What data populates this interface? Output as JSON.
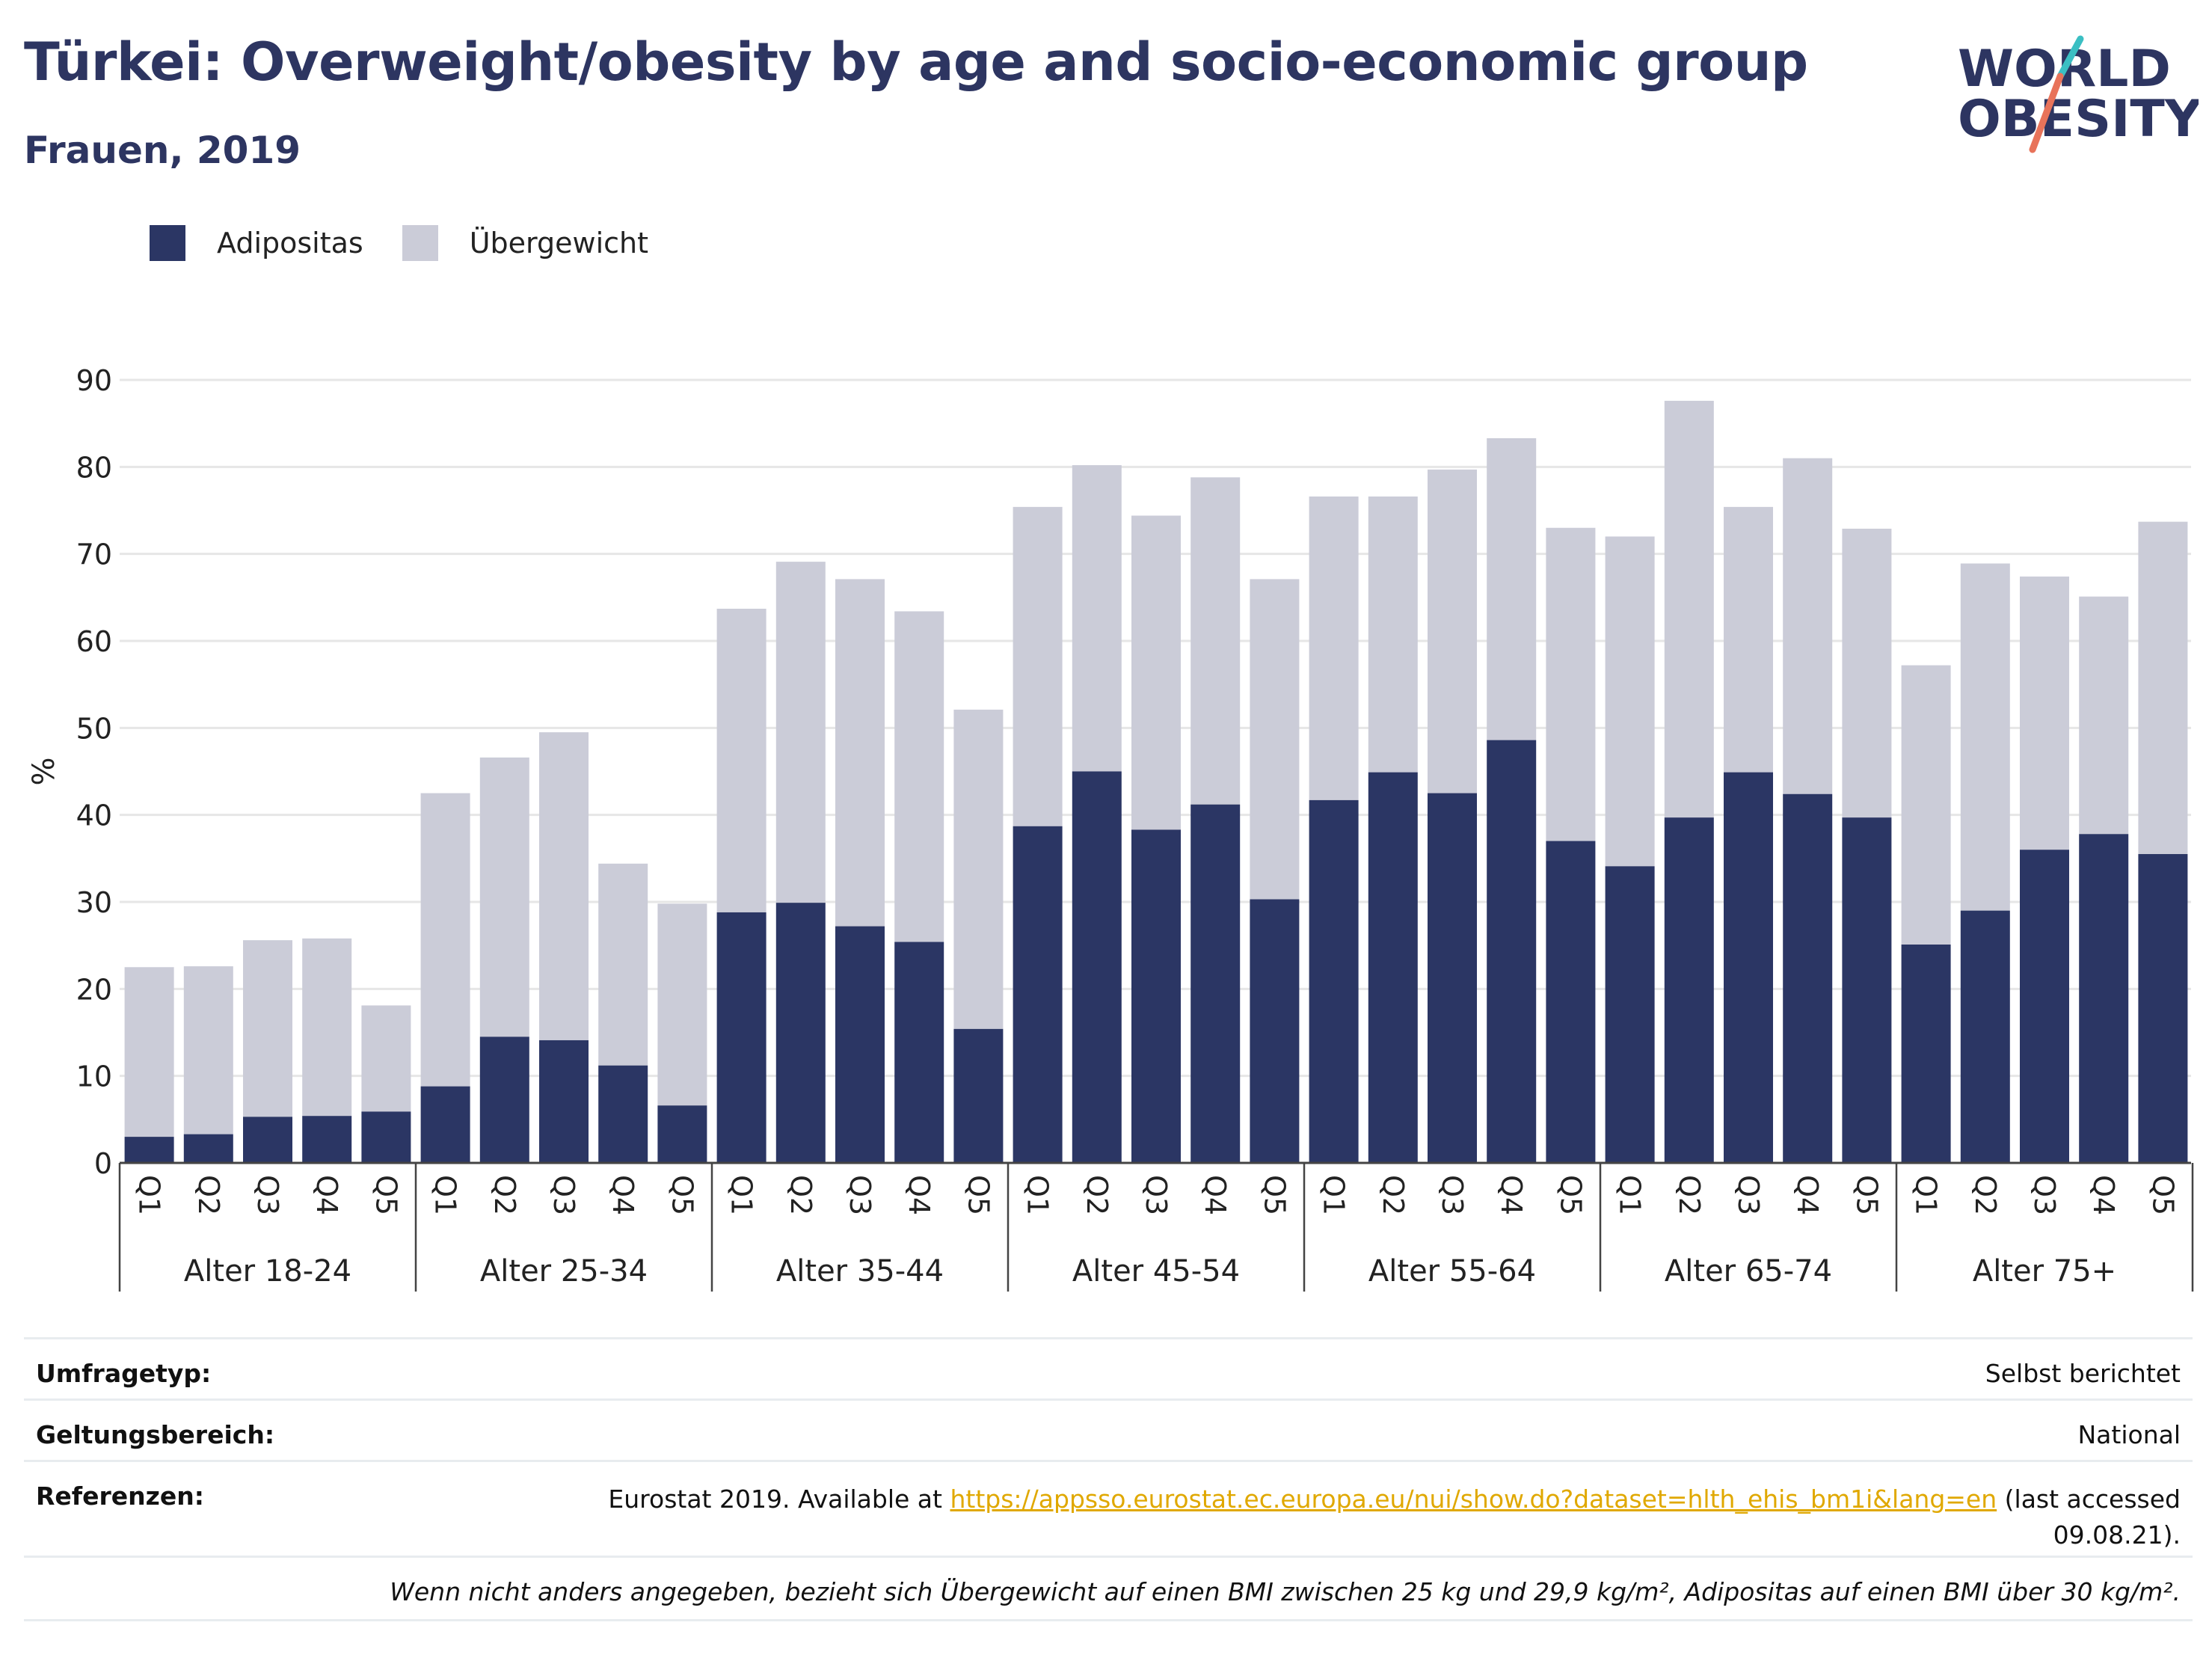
{
  "header": {
    "title": "Türkei: Overweight/obesity by age and socio-economic group",
    "subtitle": "Frauen, 2019"
  },
  "logo": {
    "line1": "WORLD",
    "line2": "OBESITY",
    "colors": {
      "text": "#2d3561",
      "slash_top": "#3bbfc3",
      "slash_bottom": "#e8735a"
    }
  },
  "legend": [
    {
      "label": "Adipositas",
      "color": "#2b3664"
    },
    {
      "label": "Übergewicht",
      "color": "#cbccd8"
    }
  ],
  "chart_data": {
    "type": "bar",
    "stacked": true,
    "ylabel": "%",
    "ylim": [
      0,
      90
    ],
    "yticks": [
      0,
      10,
      20,
      30,
      40,
      50,
      60,
      70,
      80,
      90
    ],
    "grid": true,
    "groups": [
      "Alter 18-24",
      "Alter 25-34",
      "Alter 35-44",
      "Alter 45-54",
      "Alter 55-64",
      "Alter 65-74",
      "Alter 75+"
    ],
    "subcategories": [
      "Q1",
      "Q2",
      "Q3",
      "Q4",
      "Q5"
    ],
    "series": [
      {
        "name": "Adipositas",
        "color": "#2b3664",
        "values": [
          3.0,
          3.3,
          5.3,
          5.4,
          5.9,
          8.8,
          14.5,
          14.1,
          11.2,
          6.6,
          28.8,
          29.9,
          27.2,
          25.4,
          15.4,
          38.7,
          45.0,
          38.3,
          41.2,
          30.3,
          41.7,
          44.9,
          42.5,
          48.6,
          37.0,
          34.1,
          39.7,
          44.9,
          42.4,
          39.7,
          25.1,
          29.0,
          36.0,
          37.8,
          35.5
        ]
      },
      {
        "name": "Übergewicht",
        "color": "#cbccd8",
        "values": [
          19.5,
          19.3,
          20.3,
          20.4,
          12.2,
          33.7,
          32.1,
          35.4,
          23.2,
          23.2,
          34.9,
          39.2,
          39.9,
          38.0,
          36.7,
          36.7,
          35.2,
          36.1,
          37.6,
          36.8,
          34.9,
          31.7,
          37.2,
          34.7,
          36.0,
          37.9,
          47.9,
          30.5,
          38.6,
          33.2,
          32.1,
          39.9,
          31.4,
          27.3,
          38.2
        ]
      }
    ],
    "totals": [
      22.5,
      22.6,
      25.6,
      25.8,
      18.1,
      42.5,
      46.6,
      49.5,
      34.4,
      29.8,
      63.7,
      69.1,
      67.1,
      63.4,
      52.1,
      75.4,
      80.2,
      74.4,
      78.8,
      67.1,
      76.6,
      76.6,
      79.7,
      83.3,
      73.0,
      72.0,
      87.6,
      75.4,
      81.0,
      72.9,
      57.2,
      68.9,
      67.4,
      65.1,
      73.7
    ]
  },
  "info": {
    "survey_type": {
      "label": "Umfragetyp:",
      "value": "Selbst berichtet"
    },
    "scope": {
      "label": "Geltungsbereich:",
      "value": "National"
    },
    "references": {
      "label": "Referenzen:",
      "prefix": "Eurostat 2019. Available at",
      "link": "https://appsso.eurostat.ec.europa.eu/nui/show.do?dataset=hlth_ehis_bm1i&lang=en",
      "suffix": "(last accessed",
      "date": "09.08.21)."
    },
    "note": "Wenn nicht anders angegeben, bezieht sich Übergewicht auf einen BMI zwischen 25 kg und 29,9 kg/m², Adipositas auf einen BMI über 30 kg/m²."
  }
}
